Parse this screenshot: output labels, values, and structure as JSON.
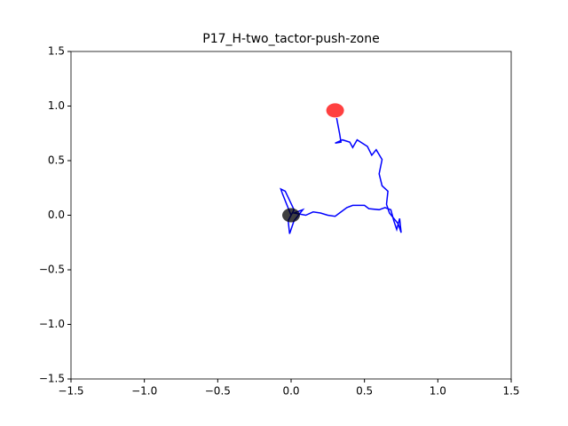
{
  "chart_data": {
    "type": "line",
    "title": "P17_H-two_tactor-push-zone",
    "x": [
      0.0,
      -0.03,
      -0.06,
      -0.07,
      -0.04,
      0.02,
      -0.02,
      -0.01,
      0.02,
      0.08,
      0.02,
      0.1,
      0.15,
      0.2,
      0.25,
      0.3,
      0.33,
      0.38,
      0.42,
      0.5,
      0.53,
      0.6,
      0.64,
      0.68,
      0.7,
      0.72,
      0.74,
      0.75,
      0.73,
      0.67,
      0.65,
      0.66,
      0.62,
      0.6,
      0.62,
      0.58,
      0.55,
      0.52,
      0.45,
      0.42,
      0.4,
      0.35,
      0.3,
      0.34,
      0.33,
      0.31
    ],
    "values": [
      0.0,
      0.1,
      0.2,
      0.24,
      0.22,
      0.05,
      -0.05,
      -0.17,
      -0.05,
      0.05,
      0.02,
      0.0,
      0.03,
      0.02,
      0.0,
      -0.01,
      0.02,
      0.07,
      0.09,
      0.09,
      0.06,
      0.05,
      0.07,
      0.05,
      -0.05,
      -0.13,
      -0.03,
      -0.16,
      -0.08,
      0.02,
      0.1,
      0.22,
      0.27,
      0.38,
      0.51,
      0.6,
      0.55,
      0.63,
      0.69,
      0.62,
      0.67,
      0.69,
      0.66,
      0.67,
      0.75,
      0.89
    ],
    "color": "#0000ff",
    "markers": [
      {
        "x": 0.0,
        "y": 0.0,
        "color": "#000000"
      },
      {
        "x": 0.3,
        "y": 0.96,
        "color": "#ff0000"
      }
    ],
    "xlim": [
      -1.5,
      1.5
    ],
    "ylim": [
      -1.5,
      1.5
    ],
    "xticks": [
      {
        "value": -1.5,
        "label": "−1.5"
      },
      {
        "value": -1.0,
        "label": "−1.0"
      },
      {
        "value": -0.5,
        "label": "−0.5"
      },
      {
        "value": 0,
        "label": "0.0"
      },
      0.5,
      {
        "value": 1.0,
        "label": "1.0"
      },
      1.5
    ],
    "yticks": [
      {
        "value": -1.5,
        "label": "−1.5"
      },
      {
        "value": -1.0,
        "label": "−1.0"
      },
      {
        "value": -0.5,
        "label": "−0.5"
      },
      {
        "value": 0,
        "label": "0.0"
      },
      0.5,
      {
        "value": 1.0,
        "label": "1.0"
      },
      1.5
    ]
  }
}
